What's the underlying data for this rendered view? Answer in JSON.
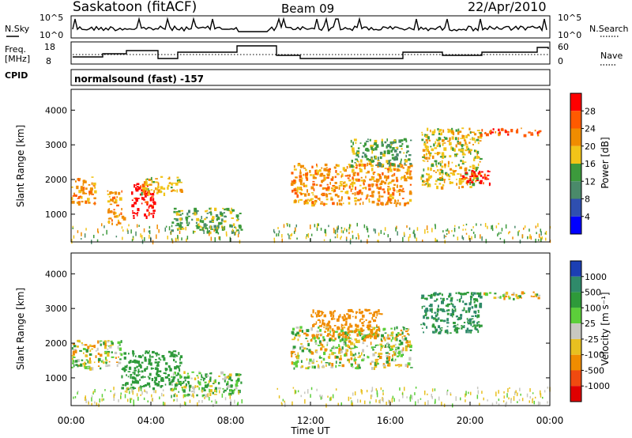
{
  "header": {
    "station": "Saskatoon (fitACF)",
    "beam": "Beam 09",
    "date": "22/Apr/2010"
  },
  "noise_panel": {
    "left_label": "N.Sky",
    "right_label": "N.Search",
    "left_ticks": [
      "10^5",
      "10^0"
    ],
    "right_ticks": [
      "10^5",
      "10^0"
    ]
  },
  "freq_panel": {
    "left_label_1": "Freq.",
    "left_label_2": "[MHz]",
    "right_label": "Nave",
    "left_ticks": [
      "18",
      "8"
    ],
    "right_ticks": [
      "60",
      "0"
    ]
  },
  "cpid": {
    "label": "CPID",
    "value": "normalsound (fast) -157"
  },
  "power_panel": {
    "ylabel": "Slant Range [km]",
    "yticks": [
      "4000",
      "3000",
      "2000",
      "1000"
    ],
    "colorbar_label": "Power [dB]",
    "colorbar_ticks": [
      "28",
      "24",
      "20",
      "16",
      "12",
      "8",
      "4"
    ],
    "colorbar_colors": [
      "#ff0000",
      "#ff5a00",
      "#f08c00",
      "#f2c418",
      "#3c9a3c",
      "#4a8a6a",
      "#2f4fb0",
      "#0000ff"
    ]
  },
  "velocity_panel": {
    "ylabel": "Slant Range [km]",
    "yticks": [
      "4000",
      "3000",
      "2000",
      "1000"
    ],
    "colorbar_label": "Velocity [m s⁻¹]",
    "colorbar_ticks": [
      "1000",
      "500",
      "100",
      "25",
      "-25",
      "-100",
      "-500",
      "-1000"
    ],
    "colorbar_colors": [
      "#1c3fb4",
      "#2f8a6a",
      "#2e9a3a",
      "#5ccf3a",
      "#c8c8c0",
      "#e8c020",
      "#f08c00",
      "#f04a10",
      "#e00000"
    ]
  },
  "xaxis": {
    "label": "Time UT",
    "ticks": [
      "00:00",
      "04:00",
      "08:00",
      "12:00",
      "16:00",
      "20:00",
      "00:00"
    ]
  },
  "chart_data": [
    {
      "type": "heatmap",
      "title": "Power",
      "xlabel": "Time UT",
      "ylabel": "Slant Range [km]",
      "xlim": [
        0,
        24
      ],
      "ylim": [
        200,
        4600
      ],
      "colorbar": {
        "label": "Power [dB]",
        "ticks": [
          4,
          8,
          12,
          16,
          20,
          24,
          28
        ]
      },
      "regions": [
        {
          "t": [
            0.0,
            1.2
          ],
          "r": [
            1300,
            2100
          ],
          "power": 20
        },
        {
          "t": [
            1.8,
            2.6
          ],
          "r": [
            700,
            1700
          ],
          "power": 20
        },
        {
          "t": [
            3.0,
            4.2
          ],
          "r": [
            900,
            1900
          ],
          "power": 28
        },
        {
          "t": [
            3.5,
            5.5
          ],
          "r": [
            1600,
            2100
          ],
          "power": 16
        },
        {
          "t": [
            5.0,
            8.5
          ],
          "r": [
            500,
            1200
          ],
          "power": 12
        },
        {
          "t": [
            11.0,
            17.0
          ],
          "r": [
            1300,
            2500
          ],
          "power": 20
        },
        {
          "t": [
            14.0,
            17.0
          ],
          "r": [
            2400,
            3200
          ],
          "power": 12
        },
        {
          "t": [
            17.5,
            20.5
          ],
          "r": [
            1800,
            3500
          ],
          "power": 16
        },
        {
          "t": [
            19.5,
            21.0
          ],
          "r": [
            1900,
            2300
          ],
          "power": 28
        },
        {
          "t": [
            20.5,
            23.5
          ],
          "r": [
            3300,
            3500
          ],
          "power": 24
        }
      ]
    },
    {
      "type": "heatmap",
      "title": "Velocity",
      "xlabel": "Time UT",
      "ylabel": "Slant Range [km]",
      "xlim": [
        0,
        24
      ],
      "ylim": [
        200,
        4600
      ],
      "colorbar": {
        "label": "Velocity [m s⁻¹]",
        "ticks": [
          -1000,
          -500,
          -100,
          -25,
          25,
          100,
          500,
          1000
        ]
      },
      "regions": [
        {
          "t": [
            0.0,
            2.5
          ],
          "r": [
            1300,
            2100
          ],
          "velocity": 0
        },
        {
          "t": [
            2.5,
            5.5
          ],
          "r": [
            700,
            1800
          ],
          "velocity": 300
        },
        {
          "t": [
            5.0,
            8.5
          ],
          "r": [
            500,
            1200
          ],
          "velocity": 100
        },
        {
          "t": [
            11.0,
            17.0
          ],
          "r": [
            1300,
            2500
          ],
          "velocity": 0
        },
        {
          "t": [
            12.0,
            15.5
          ],
          "r": [
            2200,
            3000
          ],
          "velocity": -300
        },
        {
          "t": [
            17.5,
            20.5
          ],
          "r": [
            2300,
            3500
          ],
          "velocity": 500
        },
        {
          "t": [
            20.5,
            23.5
          ],
          "r": [
            3300,
            3500
          ],
          "velocity": 0
        }
      ]
    }
  ]
}
